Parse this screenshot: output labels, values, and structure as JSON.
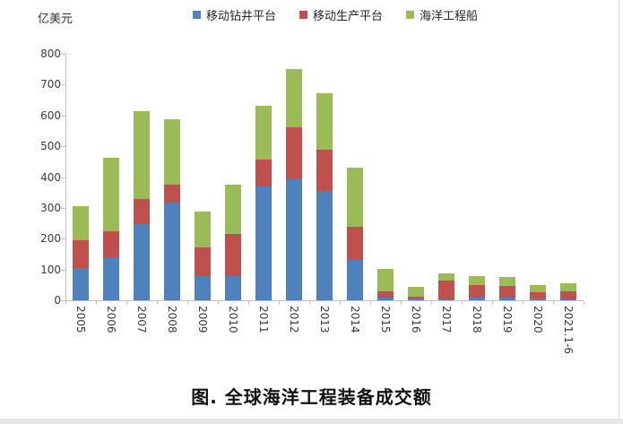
{
  "unit_label": "亿美元",
  "figure_title": "图. 全球海洋工程装备成交额",
  "chart_data": {
    "type": "bar",
    "stacked": true,
    "title": "图. 全球海洋工程装备成交额",
    "ylabel": "亿美元",
    "xlabel": "",
    "ylim": [
      0,
      800
    ],
    "y_tick_step": 100,
    "grid": false,
    "legend_position": "top",
    "categories": [
      "2005",
      "2006",
      "2007",
      "2008",
      "2009",
      "2010",
      "2011",
      "2012",
      "2013",
      "2014",
      "2015",
      "2016",
      "2017",
      "2018",
      "2019",
      "2020",
      "2021.1-6"
    ],
    "series": [
      {
        "name": "移动钻井平台",
        "color": "#4F81BD",
        "values": [
          105,
          140,
          248,
          318,
          80,
          80,
          370,
          393,
          354,
          130,
          10,
          5,
          4,
          10,
          8,
          5,
          3
        ]
      },
      {
        "name": "移动生产平台",
        "color": "#C0504D",
        "values": [
          90,
          85,
          82,
          57,
          93,
          135,
          86,
          169,
          136,
          108,
          18,
          8,
          60,
          40,
          40,
          20,
          25
        ]
      },
      {
        "name": "海洋工程船",
        "color": "#9BBB59",
        "values": [
          110,
          237,
          285,
          212,
          115,
          160,
          174,
          188,
          182,
          194,
          74,
          32,
          22,
          28,
          27,
          25,
          27
        ]
      }
    ],
    "totals": [
      305,
      462,
      615,
      587,
      288,
      375,
      630,
      750,
      672,
      432,
      102,
      45,
      86,
      78,
      75,
      50,
      55
    ]
  },
  "colors": {
    "axis": "#BFBFBF",
    "tick_text": "#3A3A3A",
    "page_border": "#D9D9D9"
  }
}
